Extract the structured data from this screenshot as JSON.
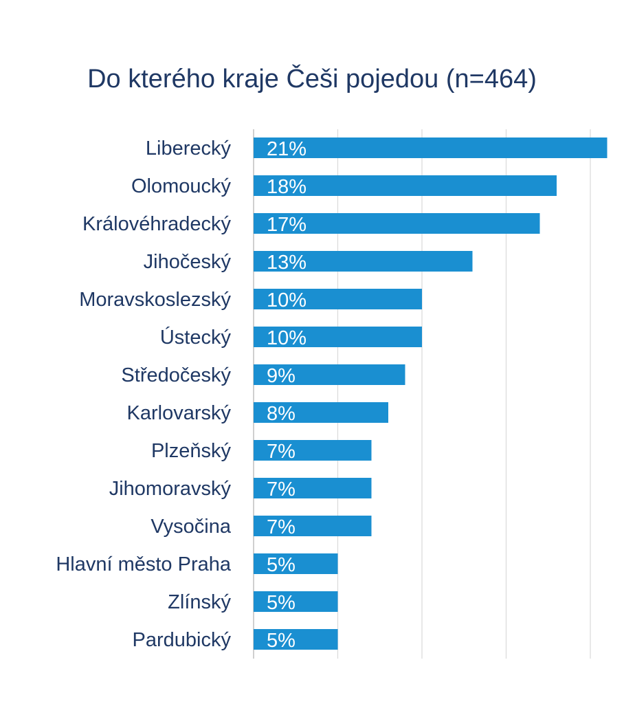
{
  "chart_data": {
    "type": "bar",
    "orientation": "horizontal",
    "title": "Do kterého kraje Češi pojedou (n=464)",
    "categories": [
      "Liberecký",
      "Olomoucký",
      "Královéhradecký",
      "Jihočeský",
      "Moravskoslezský",
      "Ústecký",
      "Středočeský",
      "Karlovarský",
      "Plzeňský",
      "Jihomoravský",
      "Vysočina",
      "Hlavní město Praha",
      "Zlínský",
      "Pardubický"
    ],
    "values": [
      21,
      18,
      17,
      13,
      10,
      10,
      9,
      8,
      7,
      7,
      7,
      5,
      5,
      5
    ],
    "value_labels": [
      "21%",
      "18%",
      "17%",
      "13%",
      "10%",
      "10%",
      "9%",
      "8%",
      "7%",
      "7%",
      "7%",
      "5%",
      "5%",
      "5%"
    ],
    "xlim": [
      0,
      20
    ],
    "unit": "%",
    "grid": true,
    "legend": "none",
    "bar_color": "#1a8fd1"
  }
}
